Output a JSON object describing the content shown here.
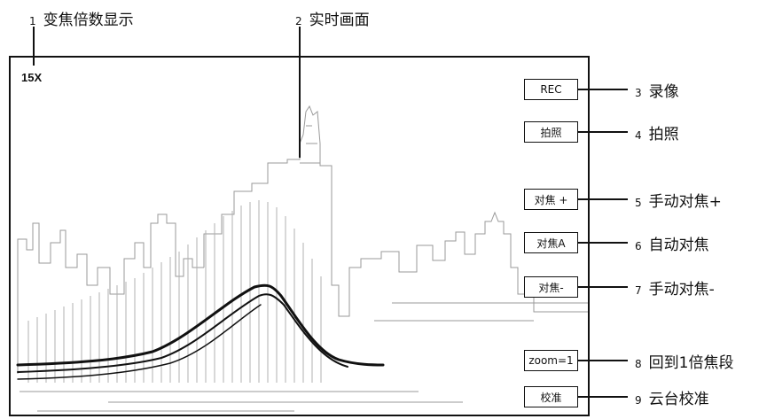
{
  "screen": {
    "zoom_readout": "15X"
  },
  "buttons": {
    "rec": "REC",
    "photo": "拍照",
    "focus_plus": "对焦 +",
    "focus_auto": "对焦A",
    "focus_minus": "对焦-",
    "zoom_reset": "zoom=1",
    "calibrate": "校准"
  },
  "callouts": [
    {
      "num": "1",
      "label": "变焦倍数显示"
    },
    {
      "num": "2",
      "label": "实时画面"
    },
    {
      "num": "3",
      "label": "录像"
    },
    {
      "num": "4",
      "label": "拍照"
    },
    {
      "num": "5",
      "label": "手动对焦+"
    },
    {
      "num": "6",
      "label": "自动对焦"
    },
    {
      "num": "7",
      "label": "手动对焦-"
    },
    {
      "num": "8",
      "label": "回到1倍焦段"
    },
    {
      "num": "9",
      "label": "云台校准"
    }
  ]
}
